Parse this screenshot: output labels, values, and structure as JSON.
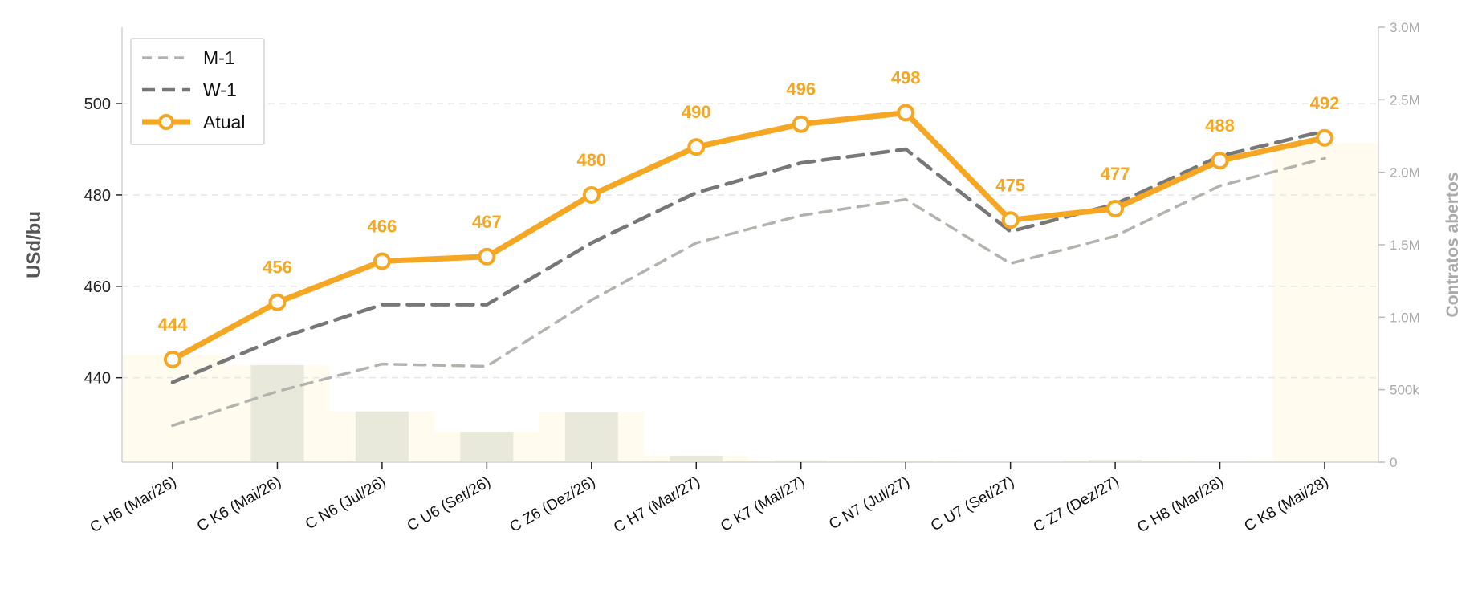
{
  "chart_data": {
    "type": "line",
    "categories": [
      "C H6 (Mar/26)",
      "C K6 (Mai/26)",
      "C N6 (Jul/26)",
      "C U6 (Set/26)",
      "C Z6 (Dez/26)",
      "C H7 (Mar/27)",
      "C K7 (Mai/27)",
      "C N7 (Jul/27)",
      "C U7 (Set/27)",
      "C Z7 (Dez/27)",
      "C H8 (Mar/28)",
      "C K8 (Mai/28)"
    ],
    "series": [
      {
        "name": "M-1",
        "style": "dashed-light",
        "color": "#B3B3AE",
        "values": [
          429.5,
          437,
          443,
          442.5,
          457,
          469.5,
          475.5,
          479,
          465,
          471,
          482,
          488
        ]
      },
      {
        "name": "W-1",
        "style": "dashed-dark",
        "color": "#777777",
        "values": [
          439,
          448.5,
          456,
          456,
          469.5,
          480.5,
          487,
          490,
          472,
          478,
          488.5,
          494
        ]
      },
      {
        "name": "Atual",
        "style": "solid-markers",
        "color": "#F5A623",
        "values": [
          444,
          456.5,
          465.5,
          466.5,
          480,
          490.5,
          495.5,
          498,
          474.5,
          477,
          487.5,
          492.5
        ]
      }
    ],
    "data_labels": [
      "444",
      "456",
      "466",
      "467",
      "480",
      "490",
      "496",
      "498",
      "475",
      "477",
      "488",
      "492"
    ],
    "open_interest": {
      "values": [
        740000,
        670000,
        350000,
        210000,
        345000,
        45000,
        12000,
        10000,
        5000,
        15000,
        8000,
        2200000
      ],
      "bar_color": "#E8E9DB",
      "area_color": "#FFFBEE"
    },
    "ylabel": "USd/bu",
    "y2label": "Contratos abertos",
    "ylim": [
      421.5,
      516.7
    ],
    "yticks": [
      440,
      460,
      480,
      500
    ],
    "y2lim": [
      0,
      3000000
    ],
    "y2ticks": [
      {
        "value": 0,
        "label": "0"
      },
      {
        "value": 500000,
        "label": "500k"
      },
      {
        "value": 1000000,
        "label": "1.0M"
      },
      {
        "value": 1500000,
        "label": "1.5M"
      },
      {
        "value": 2000000,
        "label": "2.0M"
      },
      {
        "value": 2500000,
        "label": "2.5M"
      },
      {
        "value": 3000000,
        "label": "3.0M"
      }
    ],
    "grid": "horizontal-dashed",
    "legend_position": "top-left"
  }
}
